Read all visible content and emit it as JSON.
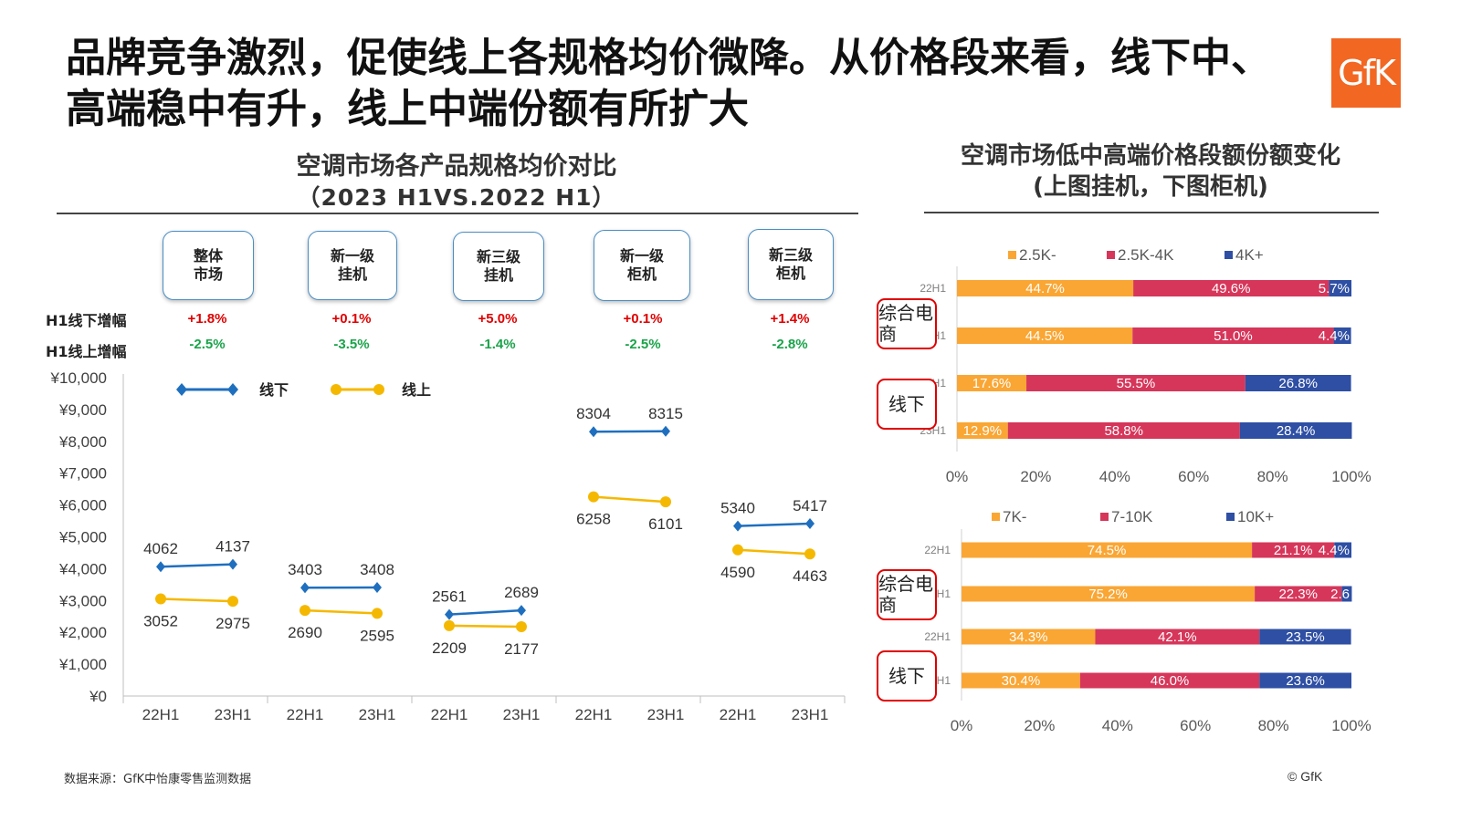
{
  "header": {
    "title_line1": "品牌竞争激烈，促使线上各规格均价微降。从价格段来看，线下中、",
    "title_line2": "高端稳中有升，线上中端份额有所扩大",
    "logo_text": "GfK"
  },
  "left_panel": {
    "title": "空调市场各产品规格均价对比",
    "subtitle": "（2023 H1VS.2022 H1）",
    "row_labels": {
      "offline": "H1线下增幅",
      "online": "H1线上增幅"
    },
    "categories": [
      {
        "line1": "整体",
        "line2": "市场",
        "offline_change": "+1.8%",
        "online_change": "-2.5%"
      },
      {
        "line1": "新一级",
        "line2": "挂机",
        "offline_change": "+0.1%",
        "online_change": "-3.5%"
      },
      {
        "line1": "新三级",
        "line2": "挂机",
        "offline_change": "+5.0%",
        "online_change": "-1.4%"
      },
      {
        "line1": "新一级",
        "line2": "柜机",
        "offline_change": "+0.1%",
        "online_change": "-2.5%"
      },
      {
        "line1": "新三级",
        "line2": "柜机",
        "offline_change": "+1.4%",
        "online_change": "-2.8%"
      }
    ]
  },
  "right_panel": {
    "title": "空调市场低中高端价格段额份额变化",
    "subtitle": "(上图挂机，下图柜机)"
  },
  "footer": {
    "source": "数据来源：GfK中怡康零售监测数据",
    "copyright": "© GfK"
  },
  "chart_data": [
    {
      "type": "line",
      "groups": [
        "整体市场",
        "新一级挂机",
        "新三级挂机",
        "新一级柜机",
        "新三级柜机"
      ],
      "x": [
        "22H1",
        "23H1",
        "22H1",
        "23H1",
        "22H1",
        "23H1",
        "22H1",
        "23H1",
        "22H1",
        "23H1"
      ],
      "series": [
        {
          "name": "线下",
          "color": "#1f6fbf",
          "marker": "diamond",
          "values": [
            4062,
            4137,
            3403,
            3408,
            2561,
            2689,
            8304,
            8315,
            5340,
            5417
          ]
        },
        {
          "name": "线上",
          "color": "#f5b800",
          "marker": "circle",
          "values": [
            3052,
            2975,
            2690,
            2595,
            2209,
            2177,
            6258,
            6101,
            4590,
            4463
          ]
        }
      ],
      "yticks": [
        "¥0",
        "¥1,000",
        "¥2,000",
        "¥3,000",
        "¥4,000",
        "¥5,000",
        "¥6,000",
        "¥7,000",
        "¥8,000",
        "¥9,000",
        "¥10,000"
      ],
      "ylim": [
        0,
        10000
      ],
      "legend": "top-left"
    },
    {
      "type": "bar",
      "orientation": "horizontal",
      "stacked": "percent",
      "categories": [
        "22H1",
        "23H1",
        "22H1",
        "23H1"
      ],
      "channel_labels": [
        "综合电商",
        "线下"
      ],
      "series": [
        {
          "name": "2.5K-",
          "color": "#faa634",
          "values": [
            44.7,
            44.5,
            17.6,
            12.9
          ],
          "labels": [
            "44.7%",
            "44.5%",
            "17.6%",
            "12.9%"
          ]
        },
        {
          "name": "2.5K-4K",
          "color": "#d6365a",
          "values": [
            49.6,
            51.0,
            55.5,
            58.8
          ],
          "labels": [
            "49.6%",
            "51.0%",
            "55.5%",
            "58.8%"
          ]
        },
        {
          "name": "4K+",
          "color": "#2e4fa3",
          "values": [
            5.7,
            4.4,
            26.8,
            28.4
          ],
          "labels": [
            "5.7%",
            "4.4%",
            "26.8%",
            "28.4%"
          ]
        }
      ],
      "xticks": [
        "0%",
        "20%",
        "40%",
        "60%",
        "80%",
        "100%"
      ],
      "xlim": [
        0,
        100
      ],
      "legend": "top"
    },
    {
      "type": "bar",
      "orientation": "horizontal",
      "stacked": "percent",
      "categories": [
        "22H1",
        "23H1",
        "22H1",
        "23H1"
      ],
      "channel_labels": [
        "综合电商",
        "线下"
      ],
      "series": [
        {
          "name": "7K-",
          "color": "#faa634",
          "values": [
            74.5,
            75.2,
            34.3,
            30.4
          ],
          "labels": [
            "74.5%",
            "75.2%",
            "34.3%",
            "30.4%"
          ]
        },
        {
          "name": "7-10K",
          "color": "#d6365a",
          "values": [
            21.1,
            22.3,
            42.1,
            46.0
          ],
          "labels": [
            "21.1%",
            "22.3%",
            "42.1%",
            "46.0%"
          ]
        },
        {
          "name": "10K+",
          "color": "#2e4fa3",
          "values": [
            4.4,
            2.6,
            23.5,
            23.6
          ],
          "labels": [
            "4.4%",
            "2.6",
            "23.5%",
            "23.6%"
          ]
        }
      ],
      "xticks": [
        "0%",
        "20%",
        "40%",
        "60%",
        "80%",
        "100%"
      ],
      "xlim": [
        0,
        100
      ],
      "legend": "top"
    }
  ]
}
